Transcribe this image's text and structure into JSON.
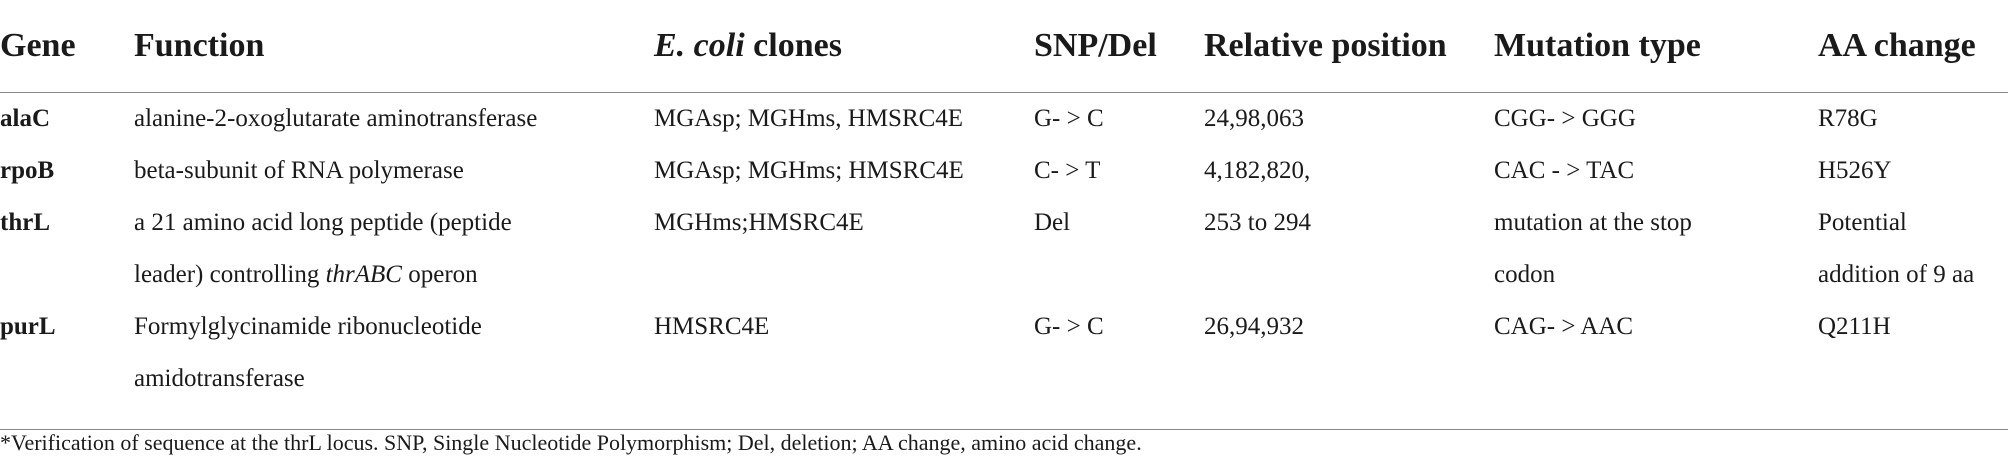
{
  "table": {
    "headers": {
      "gene": "Gene",
      "function": "Function",
      "clones_italic": "E. coli",
      "clones_rest": " clones",
      "snp": "SNP/Del",
      "position": "Relative position",
      "mutation": "Mutation type",
      "aa": "AA change"
    },
    "rows": [
      {
        "gene": "alaC",
        "function": "alanine-2-oxoglutarate aminotransferase",
        "clones": "MGAsp; MGHms, HMSRC4E",
        "snp": "G- > C",
        "position": "24,98,063",
        "mutation": "CGG- > GGG",
        "aa": "R78G"
      },
      {
        "gene": "rpoB",
        "function": "beta-subunit of RNA polymerase",
        "clones": "MGAsp; MGHms; HMSRC4E",
        "snp": "C- > T",
        "position": "4,182,820,",
        "mutation": "CAC - > TAC",
        "aa": "H526Y"
      },
      {
        "gene": "thrL",
        "function_line1": "a 21 amino acid long peptide (peptide",
        "function_line2_prefix": "leader) controlling ",
        "function_line2_italic": "thrABC",
        "function_line2_suffix": " operon",
        "clones": "MGHms;HMSRC4E",
        "snp": "Del",
        "position": "253 to 294",
        "mutation_line1": "mutation at the stop",
        "mutation_line2": "codon",
        "aa_line1": "Potential",
        "aa_line2": "addition of 9 aa"
      },
      {
        "gene": "purL",
        "function_line1": "Formylglycinamide ribonucleotide",
        "function_line2": "amidotransferase",
        "clones": "HMSRC4E",
        "snp": "G- > C",
        "position": "26,94,932",
        "mutation": "CAG- > AAC",
        "aa": "Q211H"
      }
    ]
  },
  "footnote": "*Verification of sequence at the thrL locus. SNP, Single Nucleotide Polymorphism; Del, deletion; AA change, amino acid change."
}
